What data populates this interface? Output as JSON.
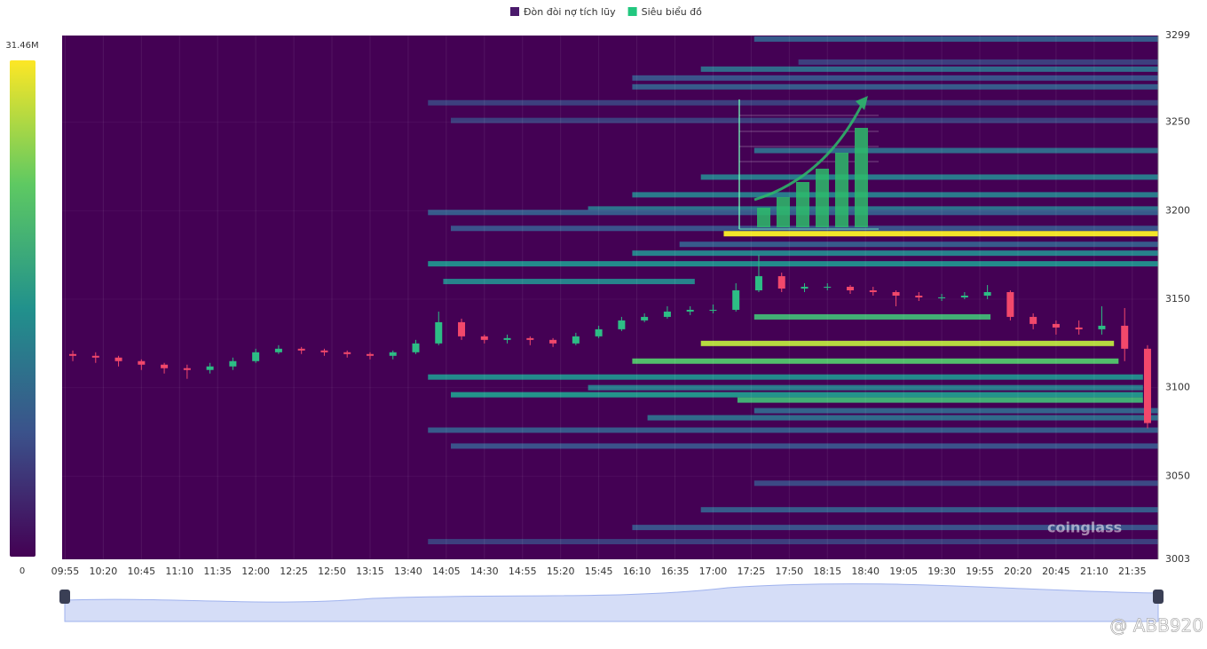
{
  "chart_data": {
    "type": "heatmap",
    "legend": [
      {
        "name": "Đòn đòi nợ tích lũy",
        "color": "#4a1a6b"
      },
      {
        "name": "Siêu biểu đồ",
        "color": "#22c77f"
      }
    ],
    "colormap": [
      "#440154",
      "#3b528b",
      "#21918c",
      "#5ec962",
      "#fde725"
    ],
    "colorbar": {
      "lim": [
        0,
        31460000
      ],
      "ticks": [
        {
          "value": 31460000,
          "label": "31.46M"
        },
        0
      ]
    },
    "xlim": [
      593,
      1312
    ],
    "xticks": [
      {
        "value": 595,
        "label": "09:55"
      },
      {
        "value": 620,
        "label": "10:20"
      },
      {
        "value": 645,
        "label": "10:45"
      },
      {
        "value": 670,
        "label": "11:10"
      },
      {
        "value": 695,
        "label": "11:35"
      },
      {
        "value": 720,
        "label": "12:00"
      },
      {
        "value": 745,
        "label": "12:25"
      },
      {
        "value": 770,
        "label": "12:50"
      },
      {
        "value": 795,
        "label": "13:15"
      },
      {
        "value": 820,
        "label": "13:40"
      },
      {
        "value": 845,
        "label": "14:05"
      },
      {
        "value": 870,
        "label": "14:30"
      },
      {
        "value": 895,
        "label": "14:55"
      },
      {
        "value": 920,
        "label": "15:20"
      },
      {
        "value": 945,
        "label": "15:45"
      },
      {
        "value": 970,
        "label": "16:10"
      },
      {
        "value": 995,
        "label": "16:35"
      },
      {
        "value": 1020,
        "label": "17:00"
      },
      {
        "value": 1045,
        "label": "17:25"
      },
      {
        "value": 1070,
        "label": "17:50"
      },
      {
        "value": 1095,
        "label": "18:15"
      },
      {
        "value": 1120,
        "label": "18:40"
      },
      {
        "value": 1145,
        "label": "19:05"
      },
      {
        "value": 1170,
        "label": "19:30"
      },
      {
        "value": 1195,
        "label": "19:55"
      },
      {
        "value": 1220,
        "label": "20:20"
      },
      {
        "value": 1245,
        "label": "20:45"
      },
      {
        "value": 1270,
        "label": "21:10"
      },
      {
        "value": 1295,
        "label": "21:35"
      }
    ],
    "ylim": [
      3003,
      3299
    ],
    "yticks": [
      3299,
      3250,
      3200,
      3150,
      3100,
      3050,
      3003
    ],
    "grid": true,
    "up_color": "#2dbd85",
    "down_color": "#f2486b",
    "bands": {
      "levels": [
        3297,
        3284,
        3280,
        3275,
        3270,
        3261,
        3251,
        3234,
        3219,
        3209,
        3201,
        3199,
        3190,
        3187,
        3181,
        3176,
        3170,
        3160,
        3140,
        3125,
        3115,
        3106,
        3100,
        3096,
        3093,
        3087,
        3083,
        3076,
        3067,
        3046,
        3031,
        3021,
        3013
      ],
      "start": [
        1047,
        1076,
        1012,
        967,
        967,
        833,
        848,
        1047,
        1012,
        967,
        938,
        833,
        848,
        1027,
        998,
        967,
        833,
        843,
        1047,
        1012,
        967,
        833,
        938,
        848,
        1036,
        1047,
        977,
        833,
        848,
        1047,
        1012,
        967,
        833
      ],
      "end": [
        null,
        null,
        null,
        null,
        null,
        null,
        null,
        null,
        null,
        null,
        null,
        null,
        null,
        null,
        null,
        null,
        null,
        1008,
        1202,
        1283,
        1286,
        1302,
        1302,
        1302,
        1302,
        null,
        null,
        null,
        null,
        null,
        null,
        null,
        null
      ],
      "intensity": [
        9000000,
        6000000,
        11000000,
        8000000,
        9000000,
        6000000,
        6000000,
        11000000,
        13000000,
        13000000,
        12000000,
        9000000,
        8000000,
        31000000,
        9000000,
        14000000,
        15000000,
        14000000,
        20000000,
        28000000,
        22000000,
        15000000,
        13000000,
        16000000,
        20000000,
        10000000,
        11000000,
        9000000,
        8000000,
        7000000,
        9000000,
        8000000,
        6000000
      ]
    },
    "candles": {
      "x": [
        600,
        615,
        630,
        645,
        660,
        675,
        690,
        705,
        720,
        735,
        750,
        765,
        780,
        795,
        810,
        825,
        840,
        855,
        870,
        885,
        900,
        915,
        930,
        945,
        960,
        975,
        990,
        1005,
        1020,
        1035,
        1050,
        1065,
        1080,
        1095,
        1110,
        1125,
        1140,
        1155,
        1170,
        1185,
        1200,
        1215,
        1230,
        1245,
        1260,
        1275,
        1290,
        1305
      ],
      "open": [
        3119,
        3118,
        3117,
        3115,
        3113,
        3111,
        3110,
        3112,
        3115,
        3120,
        3122,
        3121,
        3120,
        3119,
        3118,
        3120,
        3125,
        3137,
        3129,
        3127,
        3128,
        3127,
        3125,
        3129,
        3133,
        3138,
        3140,
        3143,
        3144,
        3144,
        3155,
        3163,
        3156,
        3157,
        3157,
        3155,
        3154,
        3152,
        3151,
        3151,
        3152,
        3154,
        3140,
        3136,
        3134,
        3133,
        3135,
        3122
      ],
      "high": [
        3121,
        3120,
        3118,
        3116,
        3114,
        3113,
        3114,
        3117,
        3122,
        3124,
        3123,
        3122,
        3121,
        3120,
        3121,
        3127,
        3143,
        3139,
        3130,
        3130,
        3129,
        3128,
        3131,
        3135,
        3140,
        3142,
        3146,
        3146,
        3147,
        3159,
        3175,
        3165,
        3159,
        3159,
        3158,
        3157,
        3155,
        3154,
        3153,
        3154,
        3158,
        3155,
        3142,
        3138,
        3138,
        3146,
        3145,
        3124
      ],
      "low": [
        3115,
        3114,
        3112,
        3110,
        3108,
        3105,
        3108,
        3110,
        3114,
        3119,
        3119,
        3118,
        3117,
        3116,
        3116,
        3119,
        3124,
        3127,
        3125,
        3125,
        3124,
        3123,
        3124,
        3128,
        3132,
        3137,
        3139,
        3141,
        3142,
        3143,
        3154,
        3154,
        3154,
        3155,
        3153,
        3152,
        3146,
        3149,
        3149,
        3150,
        3150,
        3138,
        3133,
        3130,
        3130,
        3130,
        3115,
        3077
      ],
      "close": [
        3118,
        3117,
        3115,
        3113,
        3111,
        3110,
        3112,
        3115,
        3120,
        3122,
        3121,
        3120,
        3119,
        3118,
        3120,
        3125,
        3137,
        3129,
        3127,
        3128,
        3127,
        3125,
        3129,
        3133,
        3138,
        3140,
        3143,
        3144,
        3144,
        3155,
        3163,
        3156,
        3157,
        3157,
        3155,
        3154,
        3152,
        3151,
        3151,
        3152,
        3154,
        3140,
        3136,
        3134,
        3133,
        3135,
        3122,
        3080
      ]
    },
    "watermark": "coinglass",
    "credit": "@ ABB920"
  }
}
